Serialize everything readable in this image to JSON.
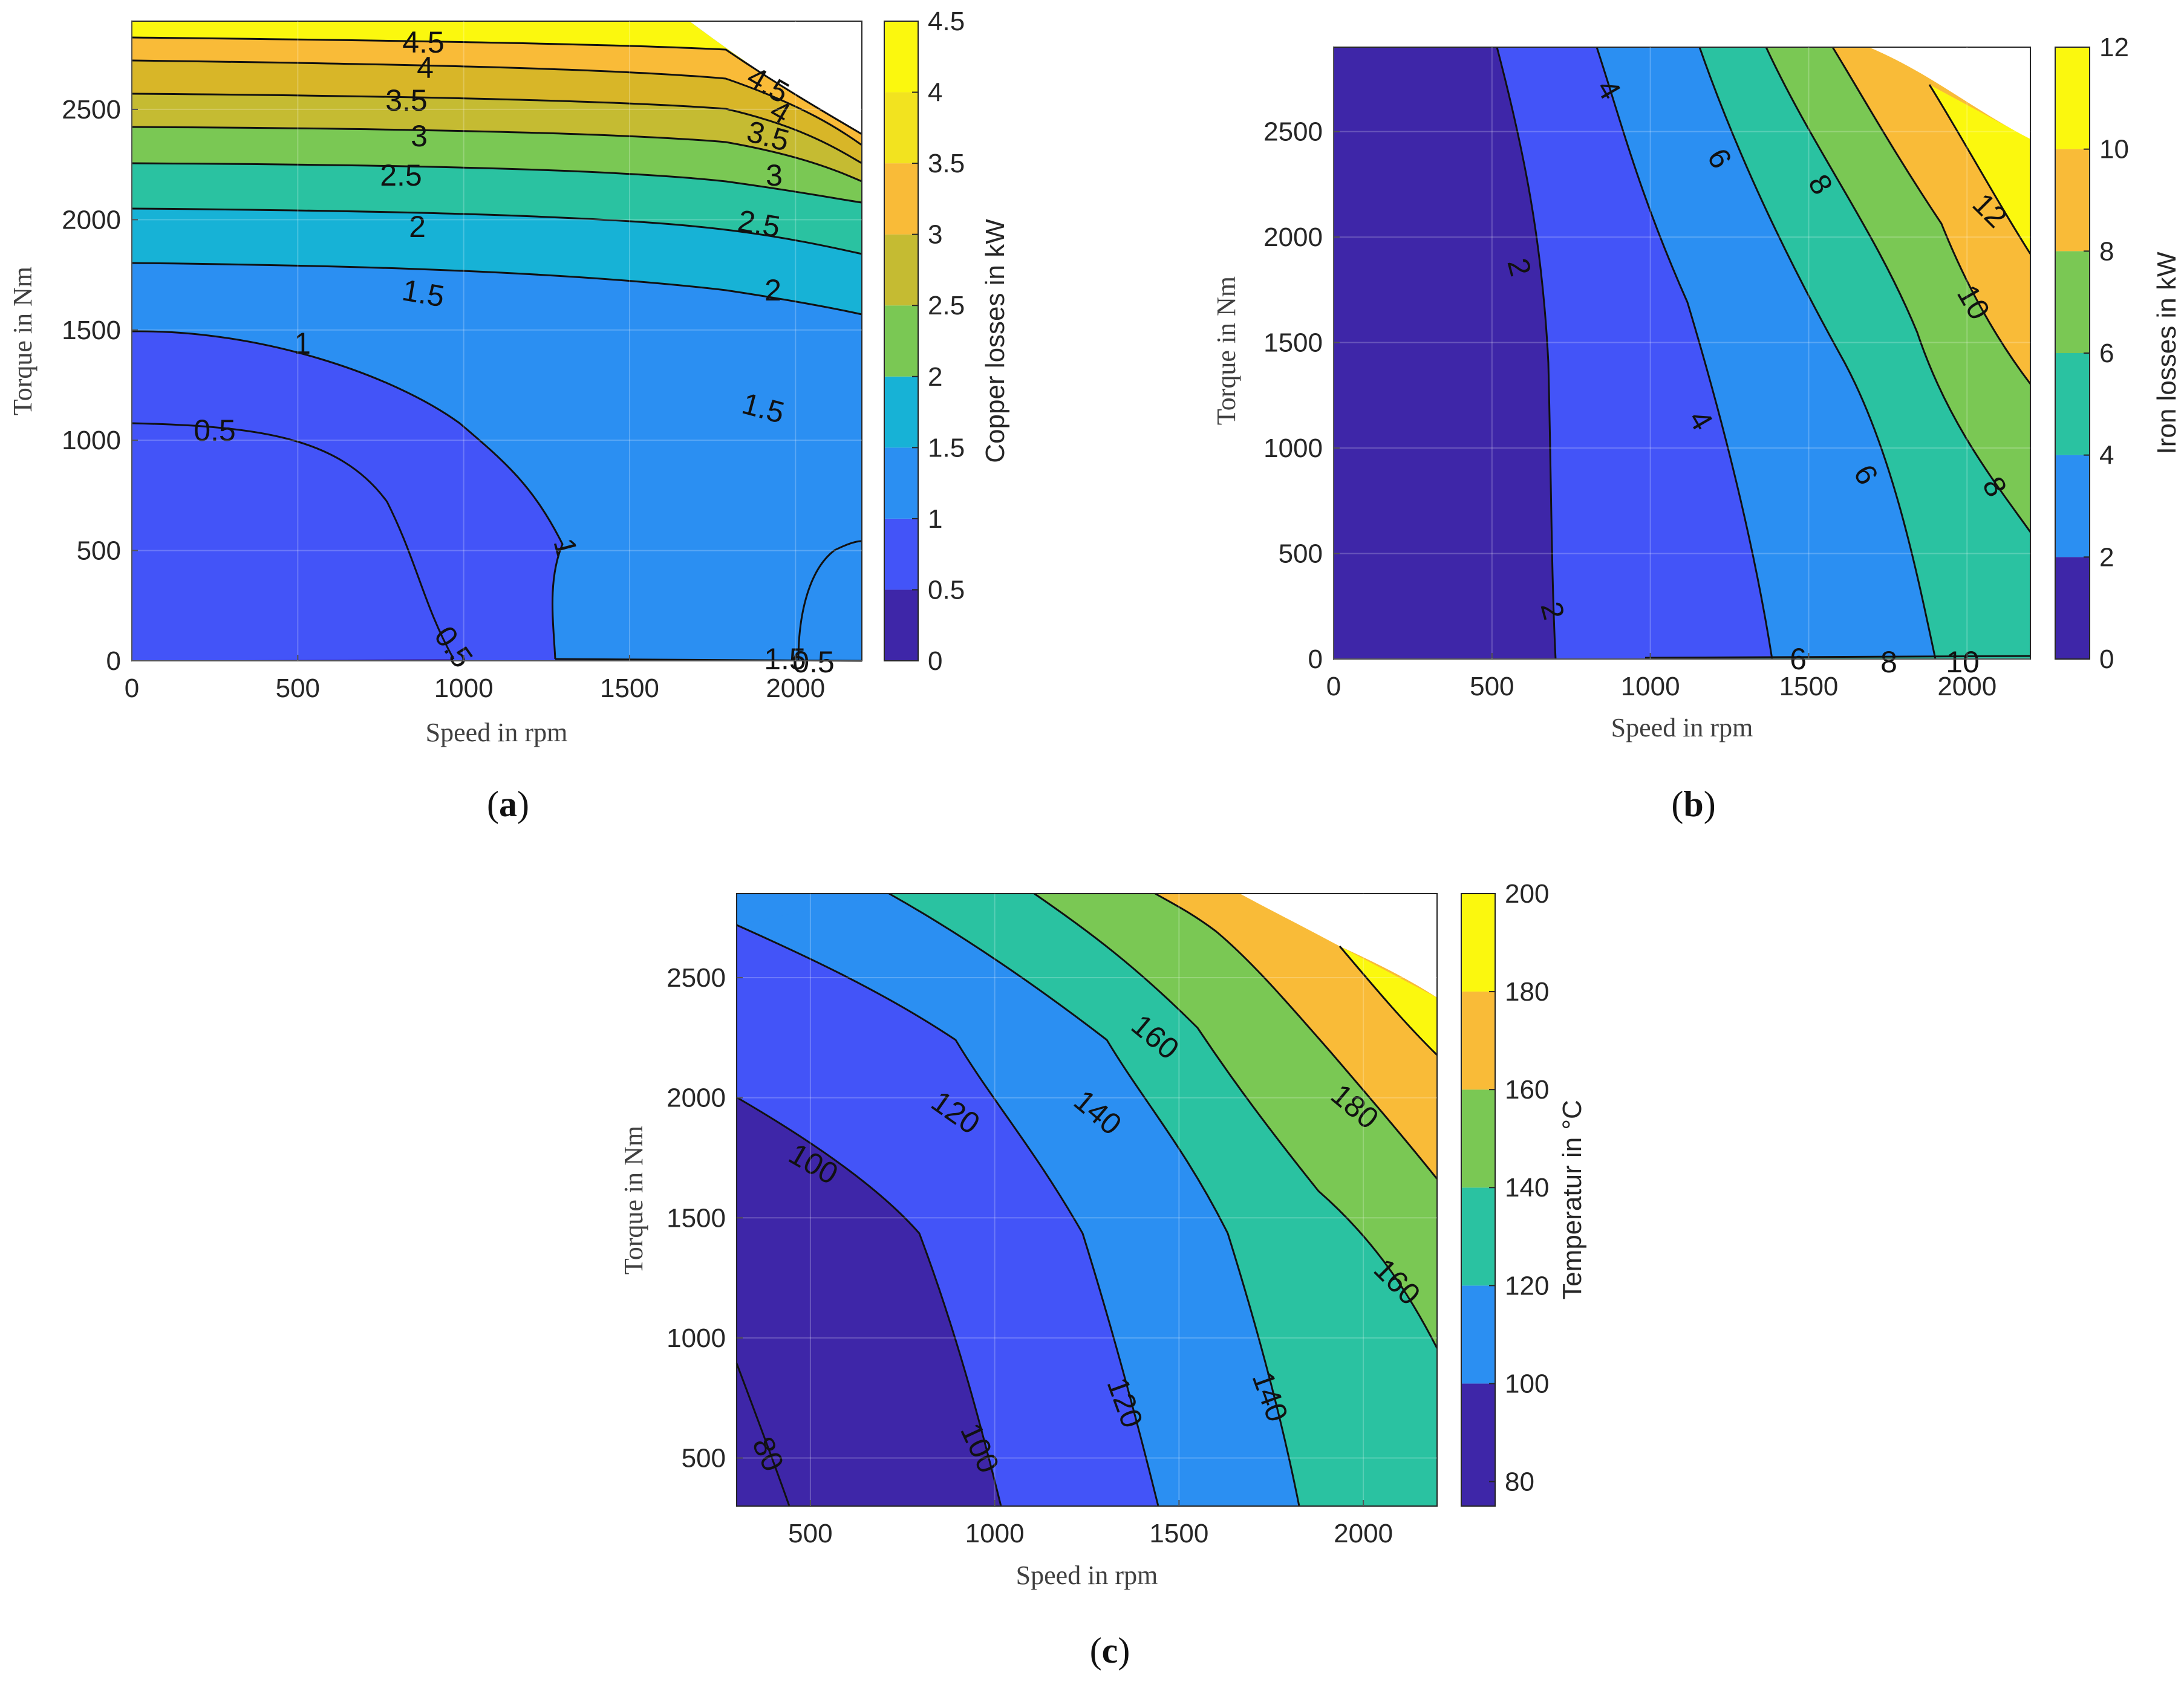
{
  "chart_data": [
    {
      "id": "a",
      "type": "contourf",
      "caption_letter": "a",
      "xlabel": "Speed in rpm",
      "ylabel": "Torque in Nm",
      "xlim": [
        0,
        2200
      ],
      "ylim": [
        0,
        2900
      ],
      "xticks": [
        0,
        500,
        1000,
        1500,
        2000
      ],
      "yticks": [
        0,
        500,
        1000,
        1500,
        2000,
        2500
      ],
      "colorbar_label": "Copper losses in kW",
      "cbar_range": [
        0,
        4.5
      ],
      "cbar_ticks": [
        "0",
        "0.5",
        "1",
        "1.5",
        "2",
        "2.5",
        "3",
        "3.5",
        "4",
        "4.5"
      ],
      "levels": [
        0,
        0.5,
        1,
        1.5,
        2,
        2.5,
        3,
        3.5,
        4,
        4.5
      ],
      "contour_labels": [
        "4.5",
        "4",
        "3.5",
        "3",
        "2.5",
        "2",
        "1.5",
        "1",
        "0.5",
        "4.5",
        "4",
        "3.5",
        "3",
        "2.5",
        "2",
        "1.5",
        "1",
        "0.5",
        "1.5",
        "0.5"
      ]
    },
    {
      "id": "b",
      "type": "contourf",
      "caption_letter": "b",
      "xlabel": "Speed in rpm",
      "ylabel": "Torque in Nm",
      "xlim": [
        0,
        2200
      ],
      "ylim": [
        0,
        2900
      ],
      "xticks": [
        0,
        500,
        1000,
        1500,
        2000
      ],
      "yticks": [
        0,
        500,
        1000,
        1500,
        2000,
        2500
      ],
      "colorbar_label": "Iron losses in kW",
      "cbar_range": [
        0,
        12
      ],
      "cbar_ticks": [
        "0",
        "2",
        "4",
        "6",
        "8",
        "10",
        "12"
      ],
      "levels": [
        0,
        2,
        4,
        6,
        8,
        10,
        12
      ],
      "contour_labels": [
        "4",
        "6",
        "8",
        "12",
        "2",
        "10",
        "4",
        "6",
        "8",
        "2",
        "6",
        "8",
        "10"
      ]
    },
    {
      "id": "c",
      "type": "contourf",
      "caption_letter": "c",
      "xlabel": "Speed in rpm",
      "ylabel": "Torque in Nm",
      "xlim": [
        300,
        2200
      ],
      "ylim": [
        300,
        2850
      ],
      "xticks": [
        500,
        1000,
        1500,
        2000
      ],
      "yticks": [
        500,
        1000,
        1500,
        2000,
        2500
      ],
      "colorbar_label": "Temperatur in °C",
      "cbar_range": [
        75,
        200
      ],
      "cbar_ticks": [
        "80",
        "100",
        "120",
        "140",
        "160",
        "180",
        "200"
      ],
      "levels": [
        75,
        100,
        120,
        140,
        160,
        180,
        200
      ],
      "contour_labels": [
        "160",
        "120",
        "140",
        "180",
        "100",
        "160",
        "120",
        "140",
        "80",
        "100"
      ]
    }
  ],
  "captions": {
    "a": "(a)",
    "b": "(b)",
    "c": "(c)"
  },
  "colors": {
    "parula": [
      "#3e26a8",
      "#4354f8",
      "#2b8ff2",
      "#17b2d6",
      "#2ac2a1",
      "#7ac854",
      "#c5bb32",
      "#f9bb38",
      "#f2e31f",
      "#fbf80e"
    ]
  }
}
